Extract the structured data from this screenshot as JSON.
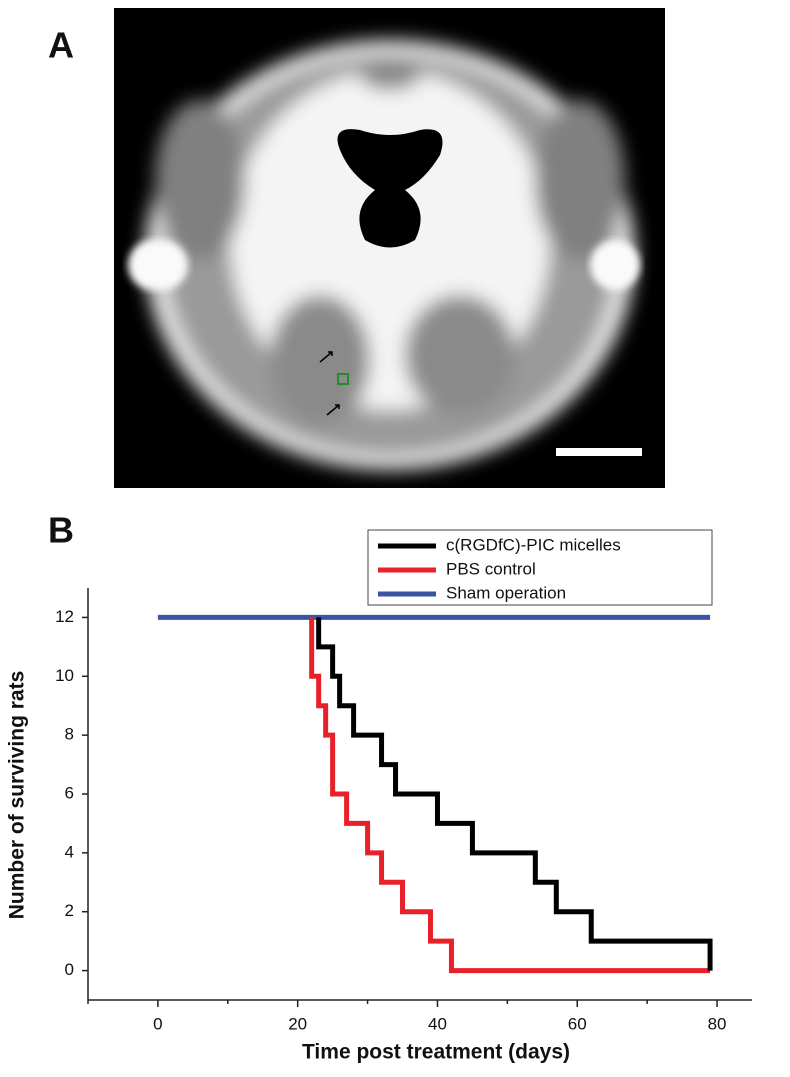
{
  "panels": [
    "A",
    "B"
  ],
  "chart_data": {
    "type": "step",
    "x_label": "Time post treatment (days)",
    "y_label": "Number of surviving rats",
    "xlim": [
      -10,
      85
    ],
    "xticks": [
      0,
      20,
      40,
      60,
      80
    ],
    "xminorticks": [
      -10,
      10,
      30,
      50,
      70
    ],
    "ylim": [
      -1,
      13
    ],
    "yticks": [
      0,
      2,
      4,
      6,
      8,
      10,
      12
    ],
    "legend": "top-right",
    "series": [
      {
        "name": "c(RGDfC)-PIC micelles",
        "color": "#000000",
        "x": [
          23,
          23,
          25,
          26,
          28,
          32,
          34,
          40,
          45,
          54,
          57,
          62,
          79
        ],
        "values": [
          12,
          11,
          10,
          9,
          8,
          7,
          6,
          5,
          4,
          3,
          2,
          1,
          0
        ]
      },
      {
        "name": "PBS control",
        "color": "#e8202a",
        "x": [
          22,
          22,
          23,
          24,
          25,
          27,
          30,
          32,
          35,
          39,
          42,
          79
        ],
        "values": [
          12,
          10,
          9,
          8,
          6,
          5,
          4,
          3,
          2,
          1,
          0,
          0
        ]
      },
      {
        "name": "Sham operation",
        "color": "#3a55a6",
        "x": [
          0,
          79
        ],
        "values": [
          12,
          12
        ]
      }
    ]
  }
}
